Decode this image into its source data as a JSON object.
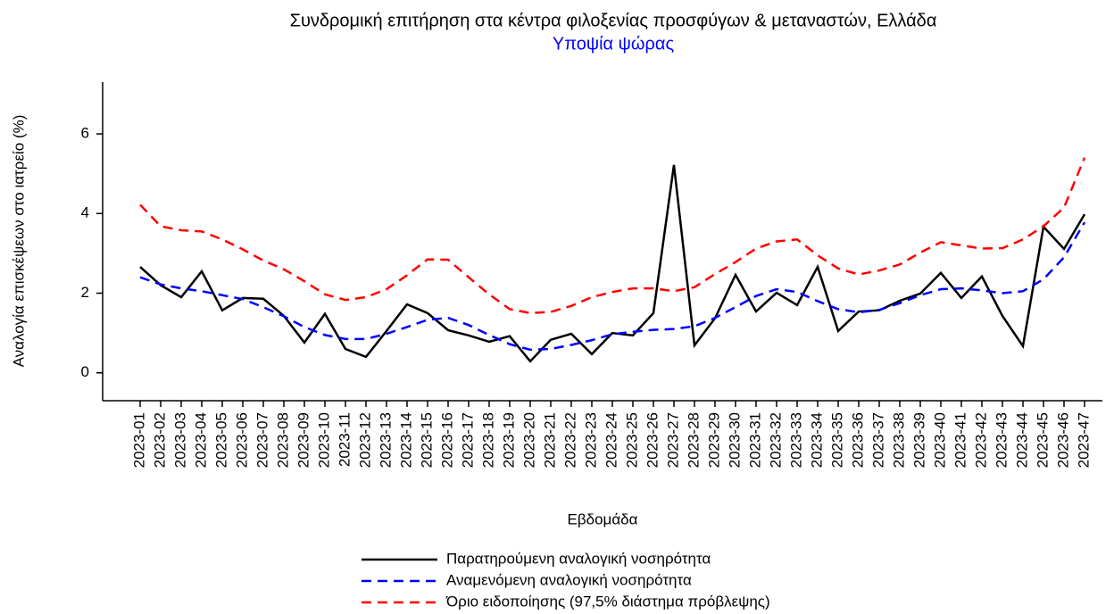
{
  "chart_data": {
    "type": "line",
    "title": "Συνδρομική επιτήρηση στα κέντρα φιλοξενίας προσφύγων & μεταναστών, Ελλάδα",
    "subtitle": "Υποψία ψώρας",
    "subtitle_color": "#0000ff",
    "x_label": "Εβδομάδα",
    "y_label": "Αναλογία επισκέψεων στο ιατρείο (%)",
    "categories": [
      "2023-01",
      "2023-02",
      "2023-03",
      "2023-04",
      "2023-05",
      "2023-06",
      "2023-07",
      "2023-08",
      "2023-09",
      "2023-10",
      "2023-11",
      "2023-12",
      "2023-13",
      "2023-14",
      "2023-15",
      "2023-16",
      "2023-17",
      "2023-18",
      "2023-19",
      "2023-20",
      "2023-21",
      "2023-22",
      "2023-23",
      "2023-24",
      "2023-25",
      "2023-26",
      "2023-27",
      "2023-28",
      "2023-29",
      "2023-30",
      "2023-31",
      "2023-32",
      "2023-33",
      "2023-34",
      "2023-35",
      "2023-36",
      "2023-37",
      "2023-38",
      "2023-39",
      "2023-40",
      "2023-41",
      "2023-42",
      "2023-43",
      "2023-44",
      "2023-45",
      "2023-46",
      "2023-47"
    ],
    "series": [
      {
        "name": "Παρατηρούμενη αναλογική νοσηρότητα",
        "color": "#000000",
        "dashed": false,
        "values": [
          2.66,
          2.2,
          1.9,
          2.55,
          1.57,
          1.88,
          1.86,
          1.43,
          0.76,
          1.48,
          0.6,
          0.4,
          1.05,
          1.72,
          1.5,
          1.07,
          0.94,
          0.78,
          0.92,
          0.29,
          0.83,
          0.98,
          0.47,
          1.0,
          0.94,
          1.5,
          5.22,
          0.69,
          1.37,
          2.46,
          1.54,
          2.01,
          1.7,
          2.66,
          1.05,
          1.54,
          1.57,
          1.81,
          1.99,
          2.51,
          1.88,
          2.42,
          1.43,
          0.67,
          3.67,
          3.11,
          3.98
        ]
      },
      {
        "name": "Αναμενόμενη αναλογική νοσηρότητα",
        "color": "#0000ff",
        "dashed": true,
        "values": [
          2.4,
          2.22,
          2.12,
          2.05,
          1.95,
          1.85,
          1.65,
          1.42,
          1.15,
          0.95,
          0.85,
          0.85,
          0.98,
          1.15,
          1.33,
          1.38,
          1.2,
          0.95,
          0.72,
          0.58,
          0.6,
          0.7,
          0.82,
          0.97,
          1.03,
          1.08,
          1.1,
          1.17,
          1.38,
          1.65,
          1.93,
          2.1,
          2.03,
          1.8,
          1.6,
          1.52,
          1.58,
          1.75,
          1.95,
          2.1,
          2.12,
          2.07,
          2.0,
          2.05,
          2.35,
          2.9,
          3.78
        ]
      },
      {
        "name": "Όριο ειδοποίησης (97,5% διάστημα πρόβλεψης)",
        "color": "#ff0000",
        "dashed": true,
        "values": [
          4.22,
          3.68,
          3.58,
          3.55,
          3.35,
          3.1,
          2.82,
          2.6,
          2.3,
          1.97,
          1.83,
          1.9,
          2.1,
          2.45,
          2.85,
          2.84,
          2.4,
          1.97,
          1.6,
          1.5,
          1.53,
          1.68,
          1.9,
          2.03,
          2.12,
          2.12,
          2.05,
          2.15,
          2.48,
          2.78,
          3.12,
          3.3,
          3.35,
          2.95,
          2.62,
          2.47,
          2.57,
          2.72,
          3.02,
          3.28,
          3.2,
          3.12,
          3.13,
          3.35,
          3.68,
          4.15,
          5.4
        ]
      }
    ],
    "ylim": [
      -0.7,
      7.3
    ],
    "yticks": [
      0,
      2,
      4,
      6
    ]
  }
}
